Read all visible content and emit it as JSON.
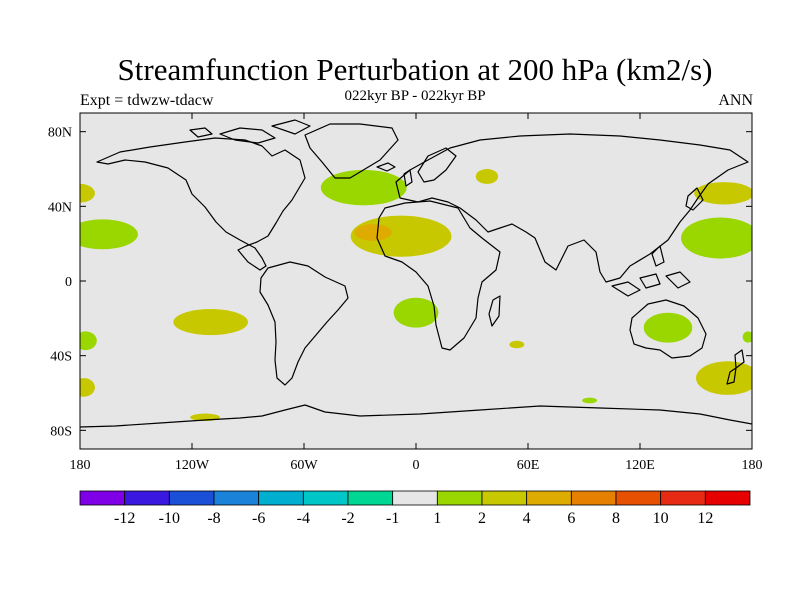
{
  "chart_data": {
    "type": "heatmap",
    "title": "Streamfunction Perturbation at 200 hPa (km2/s)",
    "subtitle": "022kyr BP - 022kyr BP",
    "left_string": "Expt = tdwzw-tdacw",
    "right_string": "ANN",
    "lon_range": [
      -180,
      180
    ],
    "lat_range": [
      -90,
      90
    ],
    "x_ticks": [
      {
        "value": -180,
        "label": "180"
      },
      {
        "value": -120,
        "label": "120W"
      },
      {
        "value": -60,
        "label": "60W"
      },
      {
        "value": 0,
        "label": "0"
      },
      {
        "value": 60,
        "label": "60E"
      },
      {
        "value": 120,
        "label": "120E"
      },
      {
        "value": 180,
        "label": "180"
      }
    ],
    "y_ticks": [
      {
        "value": 80,
        "label": "80N"
      },
      {
        "value": 40,
        "label": "40N"
      },
      {
        "value": 0,
        "label": "0"
      },
      {
        "value": -40,
        "label": "40S"
      },
      {
        "value": -80,
        "label": "80S"
      }
    ],
    "colorbar": {
      "colors": [
        "#7f00e6",
        "#3a18e0",
        "#1a50d8",
        "#1a82d8",
        "#00aed0",
        "#00c6c8",
        "#00d694",
        "#e6e6e6",
        "#9ad600",
        "#c8c800",
        "#deac00",
        "#e68000",
        "#e65000",
        "#e62a14",
        "#e60000"
      ],
      "labels": [
        "-12",
        "-10",
        "-8",
        "-6",
        "-4",
        "-2",
        "-1",
        "1",
        "2",
        "4",
        "6",
        "8",
        "10",
        "12"
      ]
    },
    "regions": [
      {
        "name": "north-atlantic",
        "level": 1,
        "center": [
          -28,
          50
        ],
        "radii": [
          23,
          9.5
        ]
      },
      {
        "name": "tropical-atlantic",
        "level": 2,
        "center": [
          -8,
          24
        ],
        "radii": [
          27,
          11
        ]
      },
      {
        "name": "tropical-atlantic-core",
        "level": 4,
        "center": [
          -23,
          26
        ],
        "radii": [
          10,
          4.5
        ]
      },
      {
        "name": "south-atlantic",
        "level": 1,
        "center": [
          0,
          -17
        ],
        "radii": [
          12,
          8
        ]
      },
      {
        "name": "east-pacific-north",
        "level": 1,
        "center": [
          -168,
          25
        ],
        "radii": [
          19,
          8
        ]
      },
      {
        "name": "west-pacific-north",
        "level": 1,
        "center": [
          163,
          23
        ],
        "radii": [
          21,
          11
        ]
      },
      {
        "name": "north-pacific-west",
        "level": 2,
        "center": [
          165,
          47
        ],
        "radii": [
          16,
          6
        ]
      },
      {
        "name": "north-pacific-east",
        "level": 2,
        "center": [
          -180,
          47
        ],
        "radii": [
          8,
          5
        ]
      },
      {
        "name": "australia",
        "level": 1,
        "center": [
          135,
          -25
        ],
        "radii": [
          13,
          8
        ]
      },
      {
        "name": "south-indian-small",
        "level": 2,
        "center": [
          54,
          -34
        ],
        "radii": [
          4,
          2
        ]
      },
      {
        "name": "south-pacific-east",
        "level": 2,
        "center": [
          -110,
          -22
        ],
        "radii": [
          20,
          7
        ]
      },
      {
        "name": "south-pacific-west",
        "level": 2,
        "center": [
          167,
          -52
        ],
        "radii": [
          17,
          9
        ]
      },
      {
        "name": "south-pacific-far-east",
        "level": 1,
        "center": [
          -177,
          -32
        ],
        "radii": [
          6,
          5
        ]
      },
      {
        "name": "south-pacific-far-east-2",
        "level": 2,
        "center": [
          -178,
          -57
        ],
        "radii": [
          6,
          5
        ]
      },
      {
        "name": "southern-ocean-small",
        "level": 2,
        "center": [
          -113,
          -73
        ],
        "radii": [
          8,
          2
        ]
      },
      {
        "name": "southern-indian-small",
        "level": 1,
        "center": [
          93,
          -64
        ],
        "radii": [
          4,
          1.5
        ]
      },
      {
        "name": "arabian",
        "level": 2,
        "center": [
          38,
          56
        ],
        "radii": [
          6,
          4
        ]
      },
      {
        "name": "australia-east",
        "level": 1,
        "center": [
          178,
          -30
        ],
        "radii": [
          3,
          3
        ]
      }
    ]
  }
}
